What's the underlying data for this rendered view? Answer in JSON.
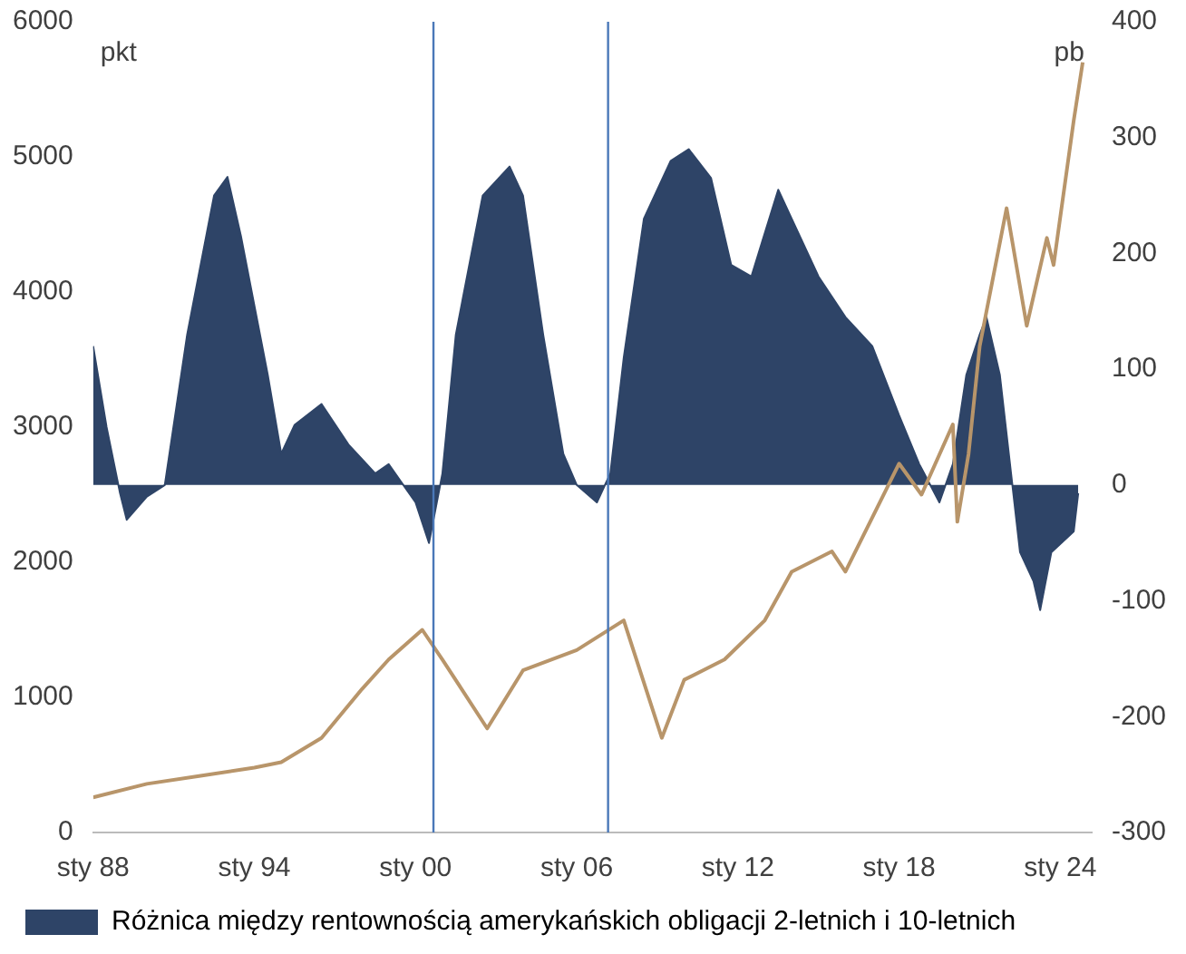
{
  "chart_data": {
    "type": "line",
    "ylabel": "pkt",
    "y2label": "pb",
    "series": [
      {
        "name": "Różnica między rentownością amerykańskich obligacji 2-letnich i 10-letnich",
        "type": "area",
        "axis": "y2",
        "color": "#2e4467",
        "x": [
          "1988-01",
          "1988-07",
          "1989-01",
          "1989-04",
          "1990-01",
          "1990-09",
          "1991-07",
          "1992-07",
          "1993-01",
          "1993-07",
          "1994-07",
          "1995-01",
          "1995-07",
          "1996-07",
          "1997-07",
          "1998-07",
          "1999-01",
          "2000-01",
          "2000-07",
          "2001-01",
          "2001-07",
          "2002-07",
          "2003-07",
          "2004-01",
          "2004-10",
          "2005-07",
          "2006-01",
          "2006-10",
          "2007-04",
          "2007-10",
          "2008-07",
          "2009-07",
          "2010-03",
          "2011-01",
          "2011-10",
          "2012-07",
          "2013-07",
          "2014-01",
          "2015-01",
          "2016-01",
          "2017-01",
          "2018-01",
          "2018-10",
          "2019-07",
          "2020-01",
          "2020-07",
          "2021-01",
          "2021-04",
          "2021-10",
          "2022-03",
          "2022-07",
          "2023-01",
          "2023-04",
          "2023-09",
          "2024-07",
          "2024-09"
        ],
        "values": [
          120,
          50,
          -7,
          -30,
          -10,
          0,
          130,
          250,
          266,
          215,
          95,
          27,
          52,
          70,
          35,
          10,
          18,
          -15,
          -50,
          10,
          130,
          250,
          275,
          250,
          130,
          27,
          0,
          -15,
          10,
          110,
          230,
          280,
          290,
          265,
          190,
          180,
          255,
          230,
          180,
          145,
          120,
          60,
          18,
          -15,
          18,
          95,
          130,
          145,
          95,
          10,
          -58,
          -83,
          -108,
          -58,
          -40,
          -7
        ]
      },
      {
        "axis": "y",
        "color": "#b8956a",
        "x": [
          "1988-01",
          "1990-01",
          "1992-01",
          "1994-01",
          "1995-01",
          "1996-07",
          "1998-01",
          "1999-01",
          "2000-04",
          "2001-01",
          "2002-09",
          "2004-01",
          "2006-01",
          "2007-10",
          "2009-03",
          "2010-01",
          "2011-07",
          "2013-01",
          "2014-01",
          "2015-07",
          "2016-01",
          "2018-01",
          "2018-11",
          "2020-01",
          "2020-03",
          "2020-08",
          "2021-01",
          "2022-01",
          "2022-10",
          "2023-07",
          "2023-10",
          "2024-07",
          "2024-11"
        ],
        "values": [
          260,
          360,
          420,
          480,
          520,
          700,
          1060,
          1280,
          1500,
          1280,
          770,
          1200,
          1350,
          1570,
          700,
          1130,
          1280,
          1570,
          1930,
          2080,
          1930,
          2730,
          2500,
          3020,
          2300,
          2800,
          3600,
          4620,
          3750,
          4400,
          4200,
          5270,
          5700
        ]
      }
    ],
    "xlim": [
      "1988-01",
      "2025-03"
    ],
    "xticks": [
      {
        "value": "1988-01",
        "label": "sty 88"
      },
      {
        "value": "1994-01",
        "label": "sty 94"
      },
      {
        "value": "2000-01",
        "label": "sty 00"
      },
      {
        "value": "2006-01",
        "label": "sty 06"
      },
      {
        "value": "2012-01",
        "label": "sty 12"
      },
      {
        "value": "2018-01",
        "label": "sty 18"
      },
      {
        "value": "2024-01",
        "label": "sty 24"
      }
    ],
    "ylim": [
      0,
      6000
    ],
    "yticks": [
      0,
      1000,
      2000,
      3000,
      4000,
      5000,
      6000
    ],
    "y2lim": [
      -300,
      400
    ],
    "y2ticks": [
      -300,
      -200,
      -100,
      0,
      100,
      200,
      300,
      400
    ],
    "ref_lines": [
      {
        "axis": "x",
        "value": "2000-09",
        "color": "#4a78b8"
      },
      {
        "axis": "x",
        "value": "2007-03",
        "color": "#4a78b8"
      }
    ],
    "legend": "bottom",
    "grid": false
  }
}
